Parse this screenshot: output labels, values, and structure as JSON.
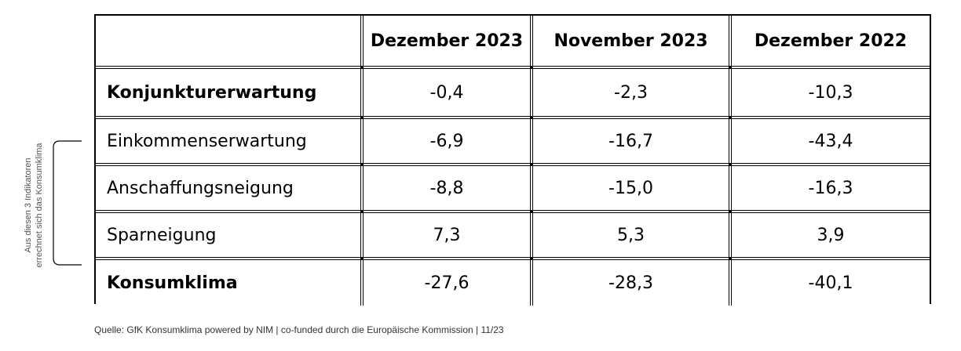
{
  "chart_data": {
    "type": "table",
    "columns": [
      "",
      "Dezember 2023",
      "November 2023",
      "Dezember 2022"
    ],
    "rows": [
      {
        "label": "Konjunkturerwartung",
        "bold": true,
        "values": [
          "-0,4",
          "-2,3",
          "-10,3"
        ]
      },
      {
        "label": "Einkommenserwartung",
        "bold": false,
        "values": [
          "-6,9",
          "-16,7",
          "-43,4"
        ]
      },
      {
        "label": "Anschaffungsneigung",
        "bold": false,
        "values": [
          "-8,8",
          "-15,0",
          "-16,3"
        ]
      },
      {
        "label": "Sparneigung",
        "bold": false,
        "values": [
          "7,3",
          "5,3",
          "3,9"
        ]
      },
      {
        "label": "Konsumklima",
        "bold": true,
        "values": [
          "-27,6",
          "-28,3",
          "-40,1"
        ]
      }
    ]
  },
  "side_note": {
    "line1": "Aus diesen 3 Indikatoren",
    "line2": "errechnet sich das Konsumklima"
  },
  "source": "Quelle: GfK Konsumklima powered by NIM | co-funded durch die Europäische Kommission | 11/23"
}
